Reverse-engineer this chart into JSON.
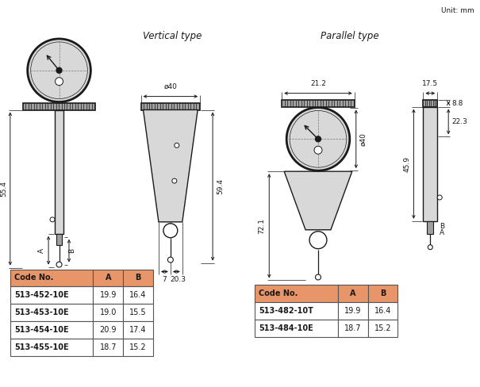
{
  "unit_label": "Unit: mm",
  "vertical_type_label": "Vertical type",
  "parallel_type_label": "Parallel type",
  "bg_color": "#ffffff",
  "drawing_color": "#1a1a1a",
  "light_gray": "#d8d8d8",
  "medium_gray": "#a0a0a0",
  "dark_gray": "#505050",
  "table_header_color": "#e8956a",
  "table_border_color": "#555555",
  "table_row_bg": "#ffffff",
  "left_table": {
    "headers": [
      "Code No.",
      "A",
      "B"
    ],
    "rows": [
      [
        "513-452-10E",
        "19.9",
        "16.4"
      ],
      [
        "513-453-10E",
        "19.0",
        "15.5"
      ],
      [
        "513-454-10E",
        "20.9",
        "17.4"
      ],
      [
        "513-455-10E",
        "18.7",
        "15.2"
      ]
    ]
  },
  "right_table": {
    "headers": [
      "Code No.",
      "A",
      "B"
    ],
    "rows": [
      [
        "513-482-10T",
        "19.9",
        "16.4"
      ],
      [
        "513-484-10E",
        "18.7",
        "15.2"
      ]
    ]
  },
  "dim_55_4": "55.4",
  "dim_59_4": "59.4",
  "dim_7": "7",
  "dim_20_3": "20.3",
  "dim_phi40_v": "ø40",
  "dim_phi40_p": "ø40",
  "dim_21_2": "21.2",
  "dim_17_5": "17.5",
  "dim_8_8": "8.8",
  "dim_22_3": "22.3",
  "dim_45_9": "45.9",
  "dim_72_1": "72.1",
  "dim_A": "A",
  "dim_B": "B"
}
